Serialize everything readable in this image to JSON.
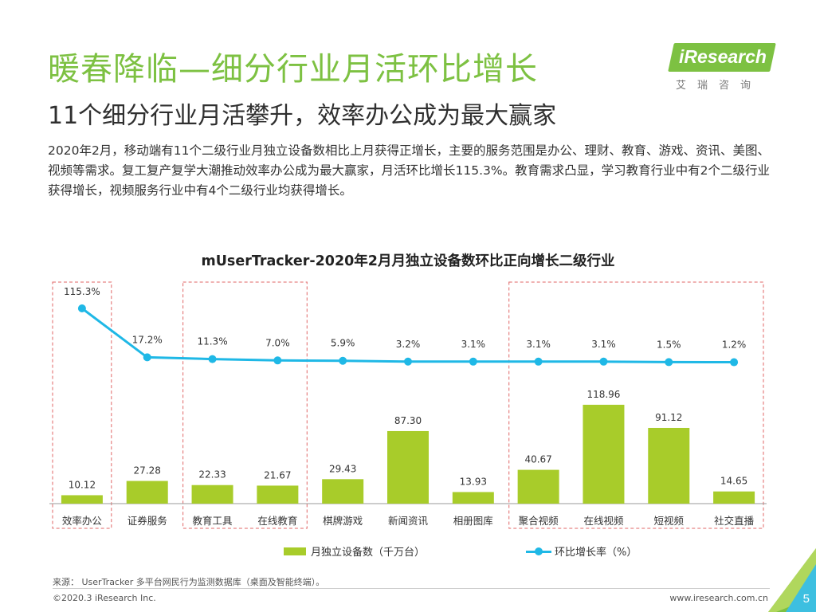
{
  "header": {
    "title": "暖春降临—细分行业月活环比增长",
    "subtitle": "11个细分行业月活攀升，效率办公成为最大赢家",
    "description": "2020年2月，移动端有11个二级行业月独立设备数相比上月获得正增长，主要的服务范围是办公、理财、教育、游戏、资讯、美图、视频等需求。复工复产复学大潮推动效率办公成为最大赢家，月活环比增长115.3%。教育需求凸显，学习教育行业中有2个二级行业获得增长，视频服务行业中有4个二级行业均获得增长。"
  },
  "logo": {
    "brand": "iResearch",
    "cn": "艾瑞咨询"
  },
  "colors": {
    "title_green": "#7dc142",
    "bar_green": "#a8cc2a",
    "line_blue": "#1fb8e6",
    "highlight_red": "#e06666"
  },
  "chart_data": {
    "type": "bar",
    "title": "mUserTracker-2020年2月月独立设备数环比正向增长二级行业",
    "categories": [
      "效率办公",
      "证券服务",
      "教育工具",
      "在线教育",
      "棋牌游戏",
      "新闻资讯",
      "相册图库",
      "聚合视频",
      "在线视频",
      "短视频",
      "社交直播"
    ],
    "series": [
      {
        "name": "月独立设备数（千万台）",
        "type": "bar",
        "values": [
          10.12,
          27.28,
          22.33,
          21.67,
          29.43,
          87.3,
          13.93,
          40.67,
          118.96,
          91.12,
          14.65
        ],
        "labels": [
          "10.12",
          "27.28",
          "22.33",
          "21.67",
          "29.43",
          "87.30",
          "13.93",
          "40.67",
          "118.96",
          "91.12",
          "14.65"
        ]
      },
      {
        "name": "环比增长率（%）",
        "type": "line",
        "values": [
          115.3,
          17.2,
          11.3,
          7.0,
          5.9,
          3.2,
          3.1,
          3.1,
          3.1,
          1.5,
          1.2
        ],
        "labels": [
          "115.3%",
          "17.2%",
          "11.3%",
          "7.0%",
          "5.9%",
          "3.2%",
          "3.1%",
          "3.1%",
          "3.1%",
          "1.5%",
          "1.2%"
        ]
      }
    ],
    "highlight_groups": [
      {
        "from": "效率办公",
        "to": "效率办公"
      },
      {
        "from": "教育工具",
        "to": "在线教育"
      },
      {
        "from": "聚合视频",
        "to": "社交直播"
      }
    ],
    "legend": [
      "月独立设备数（千万台）",
      "环比增长率（%）"
    ]
  },
  "footer": {
    "source": "来源： UserTracker 多平台网民行为监测数据库（桌面及智能终端）。",
    "copyright": "©2020.3 iResearch Inc.",
    "url": "www.iresearch.com.cn",
    "page": "5"
  }
}
